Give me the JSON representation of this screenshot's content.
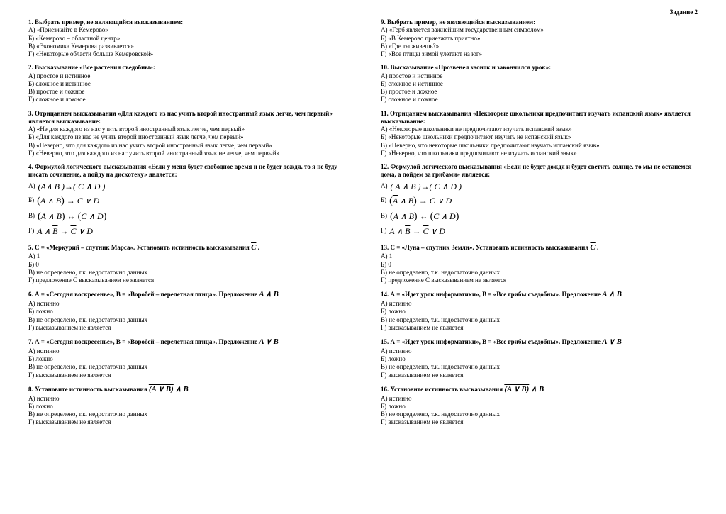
{
  "header": "Задание 2",
  "left": {
    "q1": {
      "title": "1. Выбрать пример, не являющийся высказыванием:",
      "a": "А) «Приезжайте в Кемерово»",
      "b": "Б) «Кемерово – областной центр»",
      "c": "В) «Экономика Кемерова развивается»",
      "d": "Г) «Некоторые области больше Кемеровской»"
    },
    "q2": {
      "title": "2. Высказывание «Все растения съедобны»:",
      "a": "А) простое и истинное",
      "b": "Б) сложное и истинное",
      "c": "В) простое и ложное",
      "d": "Г) сложное и ложное"
    },
    "q3": {
      "title": "3. Отрицанием высказывания «Для каждого из нас учить второй иностранный язык легче, чем первый» является высказывание:",
      "a": "А) «Не для каждого из нас учить второй иностранный язык легче, чем первый»",
      "b": "Б) «Для каждого из нас не учить второй иностранный язык легче, чем первый»",
      "c": "В) «Неверно, что для каждого из нас учить второй иностранный язык легче, чем первый»",
      "d": "Г) «Неверно, что для каждого из нас учить второй иностранный язык не легче, чем первый»"
    },
    "q4": {
      "title": "4. Формулой логического высказывания «Если у меня будет свободное время и не будет дождя, то я не буду писать сочинение, а пойду на дискотеку» является:"
    },
    "q5": {
      "title_prefix": "5. С = «Меркурий – спутник Марса». Установить истинность высказывания ",
      "a": "А) 1",
      "b": "Б) 0",
      "c": "В) не определено, т.к. недостаточно данных",
      "d": "Г) предложение  С высказыванием не является"
    },
    "q6": {
      "title_prefix": "6. А = «Сегодня воскресенье», В = «Воробей – перелетная птица». Предложение ",
      "a": "А) истинно",
      "b": "Б) ложно",
      "c": "В) не определено, т.к. недостаточно данных",
      "d": "Г) высказыванием не является"
    },
    "q7": {
      "title_prefix": "7. А = «Сегодня воскресенье», В = «Воробей – перелетная птица». Предложение ",
      "a": "А) истинно",
      "b": "Б) ложно",
      "c": "В) не определено, т.к. недостаточно данных",
      "d": "Г) высказыванием не является"
    },
    "q8": {
      "title_prefix": "8. Установите истинность высказывания ",
      "a": "А) истинно",
      "b": "Б) ложно",
      "c": "В) не определено, т.к. недостаточно данных",
      "d": "Г) высказыванием не является"
    }
  },
  "right": {
    "q9": {
      "title": "9. Выбрать пример, не являющийся высказыванием:",
      "a": "А) «Герб является важнейшим государственным символом»",
      "b": "Б) «В Кемерово приезжать приятно»",
      "c": "В) «Где ты живешь?»",
      "d": "Г) «Все птицы зимой улетают на юг»"
    },
    "q10": {
      "title": "10. Высказывание «Прозвенел звонок и закончился урок»:",
      "a": "А) простое и истинное",
      "b": "Б) сложное и истинное",
      "c": "В) простое и ложное",
      "d": "Г) сложное и ложное"
    },
    "q11": {
      "title": "11. Отрицанием высказывания «Некоторые школьники предпочитают изучать испанский язык» является высказывание:",
      "a": "А) «Некоторые школьники не предпочитают изучать испанский язык»",
      "b": "Б) «Некоторые школьники предпочитают изучать не испанский язык»",
      "c": "В) «Неверно, что некоторые школьники предпочитают изучать испанский язык»",
      "d": "Г) «Неверно, что школьники предпочитают не изучать испанский язык»"
    },
    "q12": {
      "title": "12. Формулой логического высказывания «Если не будет дождя и будет светить солнце, то мы не останемся дома, а пойдем за грибами» является:"
    },
    "q13": {
      "title_prefix": "13. С = «Луна – спутник Земли». Установить истинность высказывания ",
      "a": "А) 1",
      "b": "Б) 0",
      "c": "В) не определено, т.к. недостаточно данных",
      "d": "Г) предложение  С высказыванием не является"
    },
    "q14": {
      "title_prefix": "14. А = «Идет урок информатики», В = «Все грибы съедобны». Предложение ",
      "a": "А) истинно",
      "b": "Б) ложно",
      "c": "В) не определено, т.к. недостаточно данных",
      "d": "Г) высказыванием не является"
    },
    "q15": {
      "title_prefix": "15. А = «Идет урок информатики», В = «Все грибы съедобны». Предложение ",
      "a": "А) истинно",
      "b": "Б) ложно",
      "c": "В) не определено, т.к. недостаточно данных",
      "d": "Г) высказыванием не является"
    },
    "q16": {
      "title_prefix": "16. Установите истинность высказывания ",
      "a": "А) истинно",
      "b": "Б) ложно",
      "c": "В) не определено, т.к. недостаточно данных",
      "d": "Г) высказыванием не является"
    }
  }
}
